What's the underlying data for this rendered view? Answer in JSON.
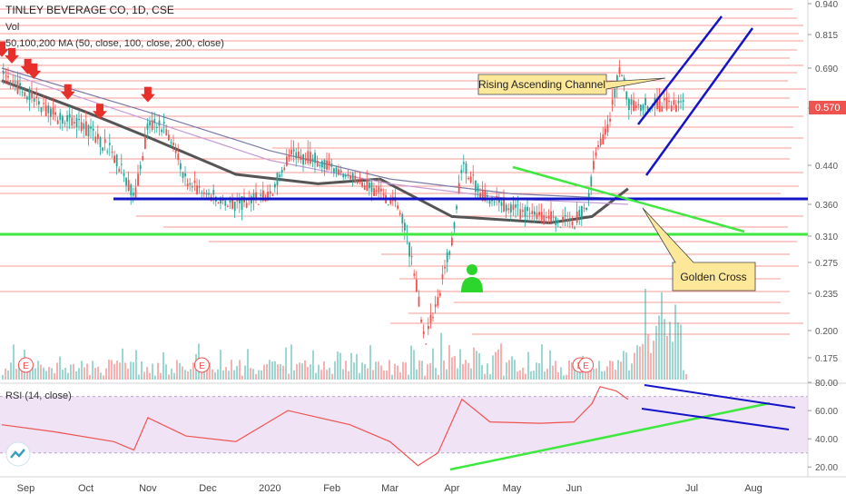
{
  "header": {
    "title": "TINLEY BEVERAGE CO, 1D, CSE",
    "vol_label": "Vol",
    "ma_label": "50,100,200 MA (50, close, 100, close, 200, close)",
    "rsi_label": "RSI (14, close)"
  },
  "colors": {
    "up": "#26a69a",
    "down": "#ef5350",
    "support_line": "#ef5350",
    "channel": "#1515c8",
    "trend_green": "#3ee83e",
    "ma50": "#7a7aa8",
    "ma100": "#c79bd6",
    "ma200": "#555555",
    "rsi_line": "#ef5350",
    "rsi_band": "#efe3f5",
    "price_badge": "#ef5350",
    "callout_fill": "#fde89a"
  },
  "annotations": {
    "channel_label": "Rising Ascending Channel",
    "cross_label": "Golden Cross",
    "earnings_marker": "E"
  },
  "chart_data": [
    {
      "type": "candlestick",
      "title": "TINLEY BEVERAGE CO, 1D, CSE",
      "x_ticks": [
        "Sep",
        "Oct",
        "Nov",
        "Dec",
        "2020",
        "Feb",
        "Mar",
        "Apr",
        "May",
        "Jun",
        "Jul",
        "Aug"
      ],
      "y_ticks": [
        "0.940",
        "0.815",
        "0.690",
        "0.570",
        "0.440",
        "0.360",
        "0.310",
        "0.275",
        "0.235",
        "0.200",
        "0.175"
      ],
      "y_scale": "log",
      "last_price": "0.570",
      "price_path": [
        [
          "2019-08-20",
          0.66
        ],
        [
          "2019-09-01",
          0.61
        ],
        [
          "2019-09-15",
          0.55
        ],
        [
          "2019-10-01",
          0.52
        ],
        [
          "2019-10-15",
          0.46
        ],
        [
          "2019-10-25",
          0.37
        ],
        [
          "2019-11-01",
          0.53
        ],
        [
          "2019-11-10",
          0.52
        ],
        [
          "2019-11-20",
          0.4
        ],
        [
          "2019-12-01",
          0.38
        ],
        [
          "2019-12-15",
          0.36
        ],
        [
          "2020-01-01",
          0.38
        ],
        [
          "2020-01-10",
          0.46
        ],
        [
          "2020-01-25",
          0.45
        ],
        [
          "2020-02-10",
          0.42
        ],
        [
          "2020-02-25",
          0.38
        ],
        [
          "2020-03-05",
          0.36
        ],
        [
          "2020-03-12",
          0.27
        ],
        [
          "2020-03-18",
          0.19
        ],
        [
          "2020-03-25",
          0.23
        ],
        [
          "2020-04-01",
          0.31
        ],
        [
          "2020-04-06",
          0.44
        ],
        [
          "2020-04-15",
          0.38
        ],
        [
          "2020-05-01",
          0.35
        ],
        [
          "2020-05-15",
          0.34
        ],
        [
          "2020-06-01",
          0.33
        ],
        [
          "2020-06-08",
          0.37
        ],
        [
          "2020-06-12",
          0.48
        ],
        [
          "2020-06-18",
          0.52
        ],
        [
          "2020-06-24",
          0.7
        ],
        [
          "2020-06-28",
          0.58
        ]
      ],
      "moving_averages": [
        {
          "name": "MA 50",
          "points": [
            [
              "2019-08-20",
              0.65
            ],
            [
              "2019-10-01",
              0.56
            ],
            [
              "2019-11-01",
              0.5
            ],
            [
              "2019-12-15",
              0.42
            ],
            [
              "2020-01-25",
              0.4
            ],
            [
              "2020-02-25",
              0.41
            ],
            [
              "2020-04-01",
              0.34
            ],
            [
              "2020-05-20",
              0.33
            ],
            [
              "2020-06-10",
              0.34
            ],
            [
              "2020-06-28",
              0.39
            ]
          ]
        },
        {
          "name": "MA 100",
          "points": [
            [
              "2019-08-20",
              0.68
            ],
            [
              "2019-11-01",
              0.54
            ],
            [
              "2020-01-01",
              0.45
            ],
            [
              "2020-03-01",
              0.4
            ],
            [
              "2020-05-01",
              0.37
            ],
            [
              "2020-06-28",
              0.36
            ]
          ]
        },
        {
          "name": "MA 200",
          "points": [
            [
              "2019-08-20",
              0.69
            ],
            [
              "2019-11-01",
              0.56
            ],
            [
              "2020-01-01",
              0.47
            ],
            [
              "2020-03-01",
              0.41
            ],
            [
              "2020-05-01",
              0.38
            ],
            [
              "2020-06-28",
              0.37
            ]
          ]
        }
      ],
      "signal_arrows": [
        "2019-08-20",
        "2019-08-25",
        "2019-09-02",
        "2019-09-05",
        "2019-09-22",
        "2019-10-08",
        "2019-11-01"
      ],
      "earnings_dates": [
        "2019-09-01",
        "2019-11-28",
        "2020-06-04",
        "2020-06-07"
      ]
    },
    {
      "type": "line",
      "title": "RSI (14, close)",
      "y_ticks": [
        "80.00",
        "60.00",
        "40.00",
        "20.00"
      ],
      "ylim": [
        15,
        82
      ],
      "band": [
        30,
        70
      ],
      "points": [
        [
          "2019-08-20",
          50
        ],
        [
          "2019-09-15",
          45
        ],
        [
          "2019-10-15",
          38
        ],
        [
          "2019-10-25",
          32
        ],
        [
          "2019-11-01",
          55
        ],
        [
          "2019-11-20",
          42
        ],
        [
          "2019-12-15",
          38
        ],
        [
          "2020-01-10",
          60
        ],
        [
          "2020-02-10",
          50
        ],
        [
          "2020-03-01",
          38
        ],
        [
          "2020-03-15",
          21
        ],
        [
          "2020-03-25",
          30
        ],
        [
          "2020-04-06",
          68
        ],
        [
          "2020-04-20",
          52
        ],
        [
          "2020-05-15",
          51
        ],
        [
          "2020-06-01",
          52
        ],
        [
          "2020-06-10",
          65
        ],
        [
          "2020-06-14",
          77
        ],
        [
          "2020-06-22",
          74
        ],
        [
          "2020-06-28",
          68
        ]
      ]
    }
  ]
}
